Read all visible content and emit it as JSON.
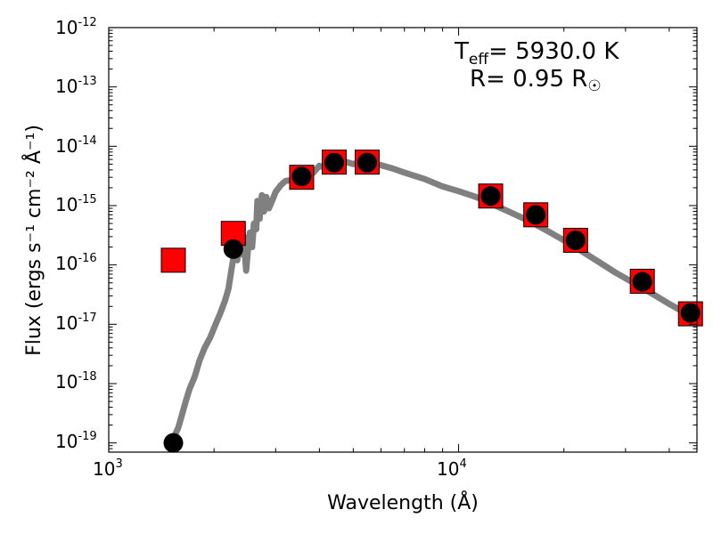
{
  "chart_data": {
    "type": "scatter",
    "x_scale": "log",
    "y_scale": "log",
    "xlim": [
      1000,
      48000
    ],
    "ylim": [
      7e-20,
      1e-12
    ],
    "xlabel": "Wavelength (Å)",
    "ylabel": "Flux (ergs s⁻¹ cm⁻² Å⁻¹)",
    "x_ticks": [
      {
        "value": 1000,
        "base": "10",
        "exp": "3"
      },
      {
        "value": 10000,
        "base": "10",
        "exp": "4"
      }
    ],
    "y_ticks": [
      {
        "value": 1e-12,
        "base": "10",
        "exp": "-12"
      },
      {
        "value": 1e-13,
        "base": "10",
        "exp": "-13"
      },
      {
        "value": 1e-14,
        "base": "10",
        "exp": "-14"
      },
      {
        "value": 1e-15,
        "base": "10",
        "exp": "-15"
      },
      {
        "value": 1e-16,
        "base": "10",
        "exp": "-16"
      },
      {
        "value": 1e-17,
        "base": "10",
        "exp": "-17"
      },
      {
        "value": 1e-18,
        "base": "10",
        "exp": "-18"
      },
      {
        "value": 1e-19,
        "base": "10",
        "exp": "-19"
      }
    ],
    "annotations": {
      "teff_label": "T",
      "teff_sub": "eff",
      "teff_value": "= 5930.0 K",
      "radius_label": "R= 0.95 R",
      "radius_symbol": "☉"
    },
    "colors": {
      "model": "#808080",
      "observed": "#ff0000",
      "synthetic": "#000000"
    },
    "series": [
      {
        "type": "line",
        "x": [
          1520,
          1540,
          1580,
          1620,
          1660,
          1700,
          1760,
          1820,
          1880,
          1950,
          2020,
          2080,
          2150,
          2200,
          2240,
          2280,
          2300,
          2330,
          2360,
          2400,
          2430,
          2470,
          2500,
          2530,
          2570,
          2600,
          2640,
          2660,
          2700,
          2740,
          2780,
          2820,
          2870,
          2930,
          3000,
          3100,
          3200,
          3350,
          3500,
          3600,
          3700,
          3850,
          4000,
          4200,
          4400,
          4600,
          4800,
          5000,
          5300,
          5600,
          6000,
          6500,
          7000,
          8000,
          9000,
          10000,
          11000,
          12000,
          13000,
          14000,
          16000,
          18000,
          20000,
          22000,
          25000,
          28000,
          32000,
          36000,
          40000,
          44000,
          48000
        ],
        "y": [
          1.1e-19,
          1.3e-19,
          1.8e-19,
          3e-19,
          5e-19,
          8e-19,
          1.3e-18,
          2.5e-18,
          4e-18,
          6e-18,
          1e-17,
          1.5e-17,
          2.5e-17,
          4e-17,
          8e-17,
          1.5e-16,
          2e-16,
          1.2e-16,
          2.5e-16,
          1.5e-16,
          3e-16,
          8e-17,
          1.8e-16,
          3.5e-16,
          2e-16,
          5e-16,
          4e-16,
          1.2e-15,
          6e-16,
          1.5e-15,
          8e-16,
          1.4e-15,
          9e-16,
          1.2e-15,
          1.7e-15,
          2.2e-15,
          2.6e-15,
          2.7e-15,
          3.4e-15,
          3e-15,
          4e-15,
          3.6e-15,
          4.7e-15,
          4.2e-15,
          5.2e-15,
          4.6e-15,
          5.4e-15,
          5e-15,
          5.6e-15,
          5.2e-15,
          4.8e-15,
          4.2e-15,
          3.6e-15,
          2.8e-15,
          2.1e-15,
          1.75e-15,
          1.45e-15,
          1.2e-15,
          9.5e-16,
          7.8e-16,
          5.4e-16,
          3.7e-16,
          2.6e-16,
          1.85e-16,
          1.15e-16,
          7.5e-17,
          4.8e-17,
          3.2e-17,
          2.2e-17,
          1.6e-17,
          1.15e-17
        ]
      },
      {
        "type": "scatter",
        "marker": "square",
        "x": [
          1530,
          2270,
          3560,
          4410,
          5480,
          12350,
          16620,
          21590,
          33500,
          46000
        ],
        "y": [
          1.2e-16,
          3.4e-16,
          3e-15,
          5.4e-15,
          5.4e-15,
          1.45e-15,
          7e-16,
          2.6e-16,
          5.3e-17,
          1.5e-17
        ]
      },
      {
        "type": "scatter",
        "marker": "circle",
        "x": [
          1530,
          2270,
          3560,
          4410,
          5480,
          12350,
          16620,
          21590,
          33500,
          46000
        ],
        "y": [
          1e-19,
          1.85e-16,
          3.1e-15,
          5.3e-15,
          5.3e-15,
          1.45e-15,
          7e-16,
          2.6e-16,
          5.2e-17,
          1.55e-17
        ]
      }
    ]
  }
}
